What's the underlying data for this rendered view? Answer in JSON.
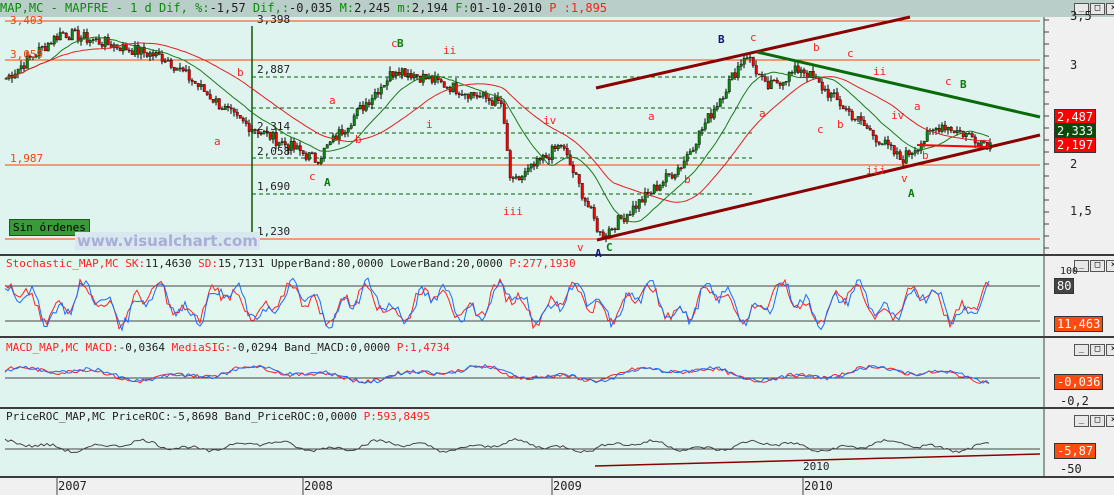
{
  "header": {
    "symbol": "MAP,MC - MAPFRE -",
    "period": "1 d",
    "dif_pct_label": "Dif, %:",
    "dif_pct": "-1,57",
    "dif_label": "Dif,:",
    "dif": "-0,035",
    "max_label": "M:",
    "max": "2,245",
    "min_label": "m:",
    "min": "2,194",
    "date_label": "F:",
    "date": "01-10-2010",
    "p_label": "P :",
    "p": "1,895"
  },
  "main": {
    "levels": [
      "3,403",
      "3,059",
      "1,987",
      "1,230"
    ],
    "fib_top": "3,398",
    "fib_levels": [
      "2,887",
      "2,314",
      "2,058",
      "1,690",
      "1,230"
    ],
    "status_badge": "Sin órdenes",
    "watermark": "www.visualchart.com",
    "price_tags": [
      {
        "value": "2,487",
        "color": "#ff0000"
      },
      {
        "value": "2,333",
        "color": "#0a4a0a"
      },
      {
        "value": "2,197",
        "color": "#ff0000"
      }
    ],
    "axis_ticks": [
      "3,5",
      "3",
      "2",
      "1,5"
    ],
    "wave_labels": [
      {
        "t": "c",
        "c": "#ff2020"
      },
      {
        "t": "B",
        "c": "#0a7a0a"
      },
      {
        "t": "ii",
        "c": "#ff2020"
      },
      {
        "t": "B",
        "c": "#101080"
      },
      {
        "t": "c",
        "c": "#ff2020"
      },
      {
        "t": "b",
        "c": "#ff2020"
      },
      {
        "t": "c",
        "c": "#ff2020"
      },
      {
        "t": "ii",
        "c": "#ff2020"
      },
      {
        "t": "c",
        "c": "#ff2020"
      },
      {
        "t": "B",
        "c": "#0a7a0a"
      },
      {
        "t": "a",
        "c": "#ff2020"
      },
      {
        "t": "b",
        "c": "#ff2020"
      },
      {
        "t": "a",
        "c": "#ff2020"
      },
      {
        "t": "b",
        "c": "#ff2020"
      },
      {
        "t": "i",
        "c": "#ff2020"
      },
      {
        "t": "a",
        "c": "#ff2020"
      },
      {
        "t": "iv",
        "c": "#ff2020"
      },
      {
        "t": "iii",
        "c": "#ff2020"
      },
      {
        "t": "v",
        "c": "#ff2020"
      },
      {
        "t": "A",
        "c": "#101080"
      },
      {
        "t": "C",
        "c": "#0a7a0a"
      },
      {
        "t": "b",
        "c": "#ff2020"
      },
      {
        "t": "a",
        "c": "#ff2020"
      },
      {
        "t": "c",
        "c": "#ff2020"
      },
      {
        "t": "b",
        "c": "#ff2020"
      },
      {
        "t": "i",
        "c": "#ff2020"
      },
      {
        "t": "iii",
        "c": "#ff2020"
      },
      {
        "t": "iv",
        "c": "#ff2020"
      },
      {
        "t": "a",
        "c": "#ff2020"
      },
      {
        "t": "v",
        "c": "#ff2020"
      },
      {
        "t": "A",
        "c": "#0a7a0a"
      },
      {
        "t": "b",
        "c": "#ff2020"
      },
      {
        "t": "c",
        "c": "#ff2020"
      },
      {
        "t": "A",
        "c": "#0a7a0a"
      }
    ]
  },
  "stochastic": {
    "name": "Stochastic_MAP,MC",
    "sk_label": "SK:",
    "sk": "11,4630",
    "sd_label": "SD:",
    "sd": "15,7131",
    "ub_label": "UpperBand:",
    "ub": "80,0000",
    "lb_label": "LowerBand:",
    "lb": "20,0000",
    "p_label": "P:",
    "p": "277,1930",
    "axis_top": "100",
    "tag_band": "80",
    "tag_value": "11,463"
  },
  "macd": {
    "name": "MACD_MAP,MC",
    "macd_label": "MACD:",
    "macd": "-0,0364",
    "sig_label": "MediaSIG:",
    "sig": "-0,0294",
    "band_label": "Band_MACD:",
    "band": "0,0000",
    "p_label": "P:",
    "p": "1,4734",
    "tag_value": "-0,036",
    "axis_low": "-0,2"
  },
  "roc": {
    "name": "PriceROC_MAP,MC",
    "roc_label": "PriceROC:",
    "roc": "-5,8698",
    "band_label": "Band_PriceROC:",
    "band": "0,0000",
    "p_label": "P:",
    "p": "593,8495",
    "tag_value": "-5,87",
    "axis_low": "-50",
    "inner_year": "2010"
  },
  "time_axis": [
    "2007",
    "2008",
    "2009",
    "2010"
  ],
  "chart_data": {
    "type": "line",
    "title": "MAP,MC - MAPFRE - 1 d",
    "x": [
      "2006-10",
      "2007-01",
      "2007-06",
      "2007-12",
      "2008-03",
      "2008-06",
      "2008-09",
      "2008-10",
      "2009-01",
      "2009-03",
      "2009-06",
      "2009-10",
      "2009-11",
      "2010-03",
      "2010-06",
      "2010-08",
      "2010-10"
    ],
    "series": [
      {
        "name": "MAP,MC",
        "values": [
          2.85,
          3.3,
          3.05,
          2.45,
          2.05,
          2.95,
          2.6,
          1.8,
          2.2,
          1.3,
          2.0,
          3.1,
          2.75,
          2.95,
          2.05,
          2.4,
          2.2
        ]
      }
    ],
    "ylim": [
      1.2,
      3.5
    ],
    "colors": {
      "up": "#0a8a0a",
      "down": "#ff0000",
      "ma_fast": "#1a7a1a",
      "ma_slow": "#e02020",
      "trend": "#8b0000"
    }
  }
}
